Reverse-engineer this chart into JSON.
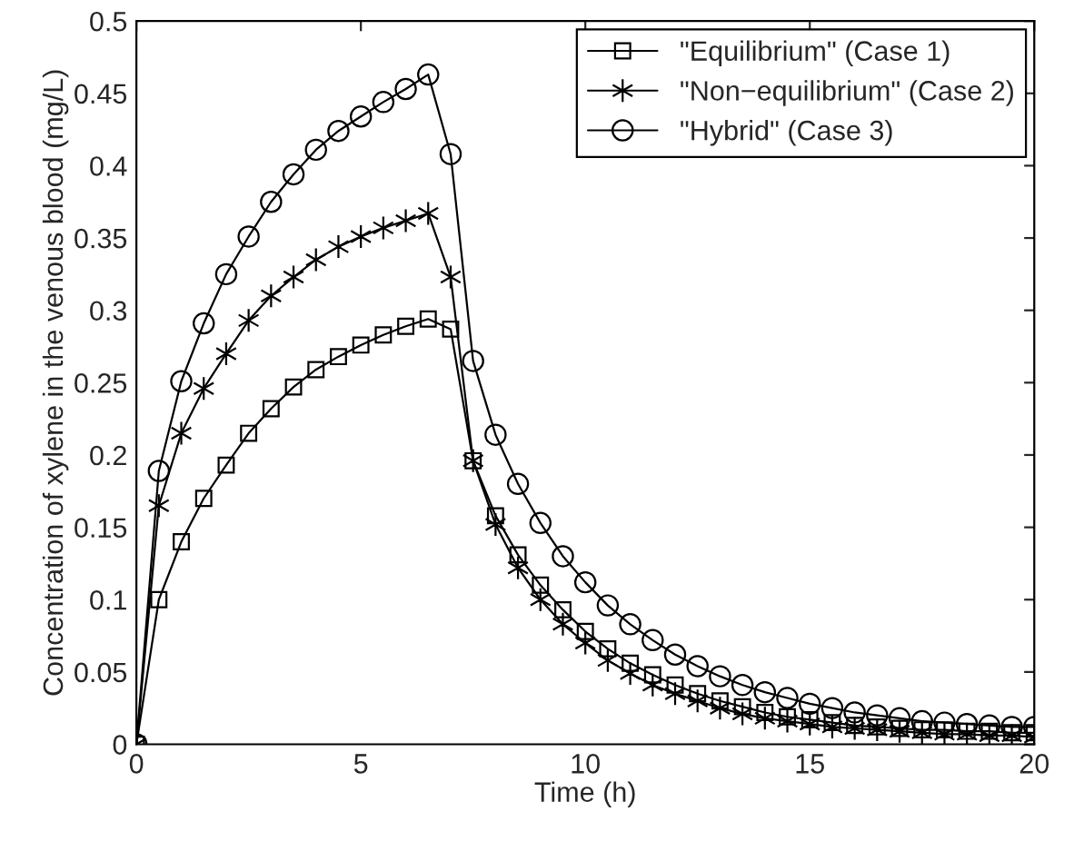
{
  "chart_data": {
    "type": "line",
    "xlabel": "Time (h)",
    "ylabel": "Concentration of xylene in the venous blood (mg/L)",
    "x": [
      0,
      0.5,
      1,
      1.5,
      2,
      2.5,
      3,
      3.5,
      4,
      4.5,
      5,
      5.5,
      6,
      6.5,
      7,
      7.5,
      8,
      8.5,
      9,
      9.5,
      10,
      10.5,
      11,
      11.5,
      12,
      12.5,
      13,
      13.5,
      14,
      14.5,
      15,
      15.5,
      16,
      16.5,
      17,
      17.5,
      18,
      18.5,
      19,
      19.5,
      20
    ],
    "series": [
      {
        "name": "\"Equilibrium\" (Case 1)",
        "color": "#000000",
        "marker": "square",
        "values": [
          0,
          0.1,
          0.14,
          0.17,
          0.193,
          0.215,
          0.232,
          0.247,
          0.259,
          0.268,
          0.276,
          0.283,
          0.289,
          0.294,
          0.287,
          0.196,
          0.158,
          0.131,
          0.11,
          0.093,
          0.078,
          0.066,
          0.056,
          0.048,
          0.041,
          0.035,
          0.03,
          0.026,
          0.022,
          0.019,
          0.017,
          0.015,
          0.013,
          0.012,
          0.011,
          0.01,
          0.01,
          0.009,
          0.009,
          0.008,
          0.008
        ]
      },
      {
        "name": "\"Non−equilibrium\" (Case 2)",
        "color": "#000000",
        "marker": "cross",
        "values": [
          0,
          0.165,
          0.215,
          0.246,
          0.27,
          0.293,
          0.31,
          0.323,
          0.335,
          0.344,
          0.351,
          0.357,
          0.362,
          0.367,
          0.323,
          0.196,
          0.152,
          0.122,
          0.1,
          0.083,
          0.07,
          0.058,
          0.049,
          0.041,
          0.035,
          0.03,
          0.025,
          0.021,
          0.018,
          0.016,
          0.014,
          0.012,
          0.011,
          0.01,
          0.009,
          0.008,
          0.007,
          0.007,
          0.006,
          0.006,
          0.005
        ]
      },
      {
        "name": "\"Hybrid\" (Case 3)",
        "color": "#000000",
        "marker": "circle",
        "values": [
          0,
          0.189,
          0.251,
          0.291,
          0.325,
          0.351,
          0.375,
          0.394,
          0.411,
          0.424,
          0.434,
          0.444,
          0.453,
          0.463,
          0.408,
          0.265,
          0.214,
          0.18,
          0.153,
          0.13,
          0.112,
          0.096,
          0.083,
          0.072,
          0.062,
          0.054,
          0.047,
          0.041,
          0.036,
          0.032,
          0.028,
          0.025,
          0.022,
          0.02,
          0.018,
          0.016,
          0.015,
          0.014,
          0.013,
          0.012,
          0.012
        ]
      }
    ],
    "xlim": [
      0,
      20
    ],
    "xticks": [
      0,
      5,
      10,
      15,
      20
    ],
    "ylim": [
      0,
      0.5
    ],
    "yticks": [
      0,
      0.05,
      0.1,
      0.15,
      0.2,
      0.25,
      0.3,
      0.35,
      0.4,
      0.45,
      0.5
    ],
    "grid": false,
    "legend": "top right",
    "line_style": "solid"
  }
}
